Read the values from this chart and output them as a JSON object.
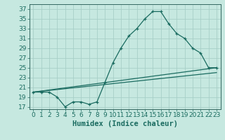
{
  "xlabel": "Humidex (Indice chaleur)",
  "bg_color": "#c6e8e0",
  "grid_color": "#a8cfc8",
  "line_color": "#1a6b60",
  "spine_color": "#336660",
  "xlim": [
    -0.5,
    23.5
  ],
  "ylim": [
    16.5,
    38
  ],
  "yticks": [
    17,
    19,
    21,
    23,
    25,
    27,
    29,
    31,
    33,
    35,
    37
  ],
  "xticks": [
    0,
    1,
    2,
    3,
    4,
    5,
    6,
    7,
    8,
    9,
    10,
    11,
    12,
    13,
    14,
    15,
    16,
    17,
    18,
    19,
    20,
    21,
    22,
    23
  ],
  "line1_x": [
    0,
    1,
    2,
    3,
    4,
    5,
    6,
    7,
    8,
    9,
    10,
    11,
    12,
    13,
    14,
    15,
    16,
    17,
    18,
    19,
    20,
    21,
    22,
    23
  ],
  "line1_y": [
    20,
    20,
    20,
    19,
    17,
    18,
    18,
    17.5,
    18,
    22,
    26,
    29,
    31.5,
    33,
    35,
    36.5,
    36.5,
    34,
    32,
    31,
    29,
    28,
    25,
    25
  ],
  "line2_x": [
    0,
    23
  ],
  "line2_y": [
    20,
    25
  ],
  "line3_x": [
    0,
    23
  ],
  "line3_y": [
    20,
    24
  ],
  "font_size": 6.5,
  "xlabel_fontsize": 7.5
}
